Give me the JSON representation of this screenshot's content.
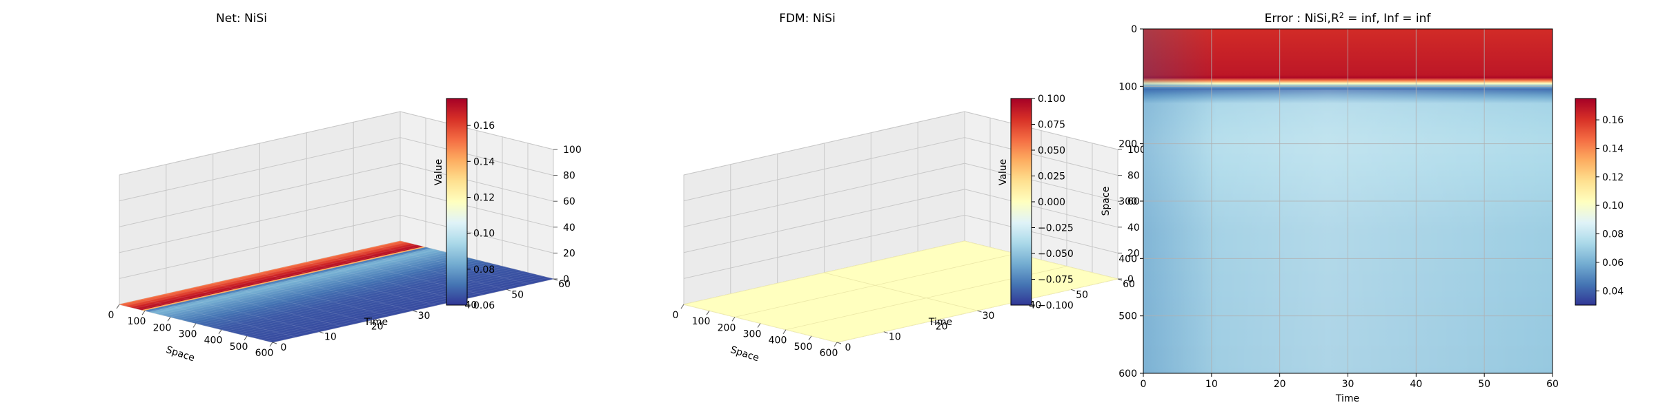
{
  "chart_data": [
    {
      "type": "surface3d",
      "title": "Net: NiSi",
      "xlabel": "Space",
      "ylabel": "Time",
      "zlabel": "Value",
      "x_ticks": [
        0,
        100,
        200,
        300,
        400,
        500,
        600
      ],
      "y_ticks": [
        0,
        10,
        20,
        30,
        40,
        50,
        60
      ],
      "z_ticks": [
        0,
        20,
        40,
        60,
        80,
        100
      ],
      "xlim": [
        0,
        600
      ],
      "ylim": [
        0,
        60
      ],
      "zlim": [
        0,
        100
      ],
      "colorbar": {
        "min": 0.06,
        "max": 0.175,
        "ticks": [
          "0.06",
          "0.08",
          "0.10",
          "0.12",
          "0.14",
          "0.16"
        ],
        "tick_values": [
          0.06,
          0.08,
          0.1,
          0.12,
          0.14,
          0.16
        ]
      },
      "profile": [
        [
          0,
          0.15
        ],
        [
          60,
          0.168
        ],
        [
          90,
          0.172
        ],
        [
          95,
          0.14
        ],
        [
          100,
          0.1
        ],
        [
          105,
          0.072
        ],
        [
          130,
          0.085
        ],
        [
          200,
          0.078
        ],
        [
          300,
          0.07
        ],
        [
          400,
          0.066
        ],
        [
          600,
          0.064
        ]
      ],
      "grid": true
    },
    {
      "type": "surface3d",
      "title": "FDM: NiSi",
      "xlabel": "Space",
      "ylabel": "Time",
      "zlabel": "Value",
      "x_ticks": [
        0,
        100,
        200,
        300,
        400,
        500,
        600
      ],
      "y_ticks": [
        0,
        10,
        20,
        30,
        40,
        50,
        60
      ],
      "z_ticks": [
        0,
        20,
        40,
        60,
        80,
        100
      ],
      "xlim": [
        0,
        600
      ],
      "ylim": [
        0,
        60
      ],
      "zlim": [
        0,
        100
      ],
      "colorbar": {
        "min": -0.1,
        "max": 0.1,
        "ticks": [
          "0.100",
          "0.075",
          "0.050",
          "0.025",
          "0.000",
          "−0.025",
          "−0.050",
          "−0.075",
          "−0.100"
        ],
        "tick_values": [
          0.1,
          0.075,
          0.05,
          0.025,
          0.0,
          -0.025,
          -0.05,
          -0.075,
          -0.1
        ]
      },
      "constant_value": 0.0,
      "grid": true
    },
    {
      "type": "heatmap",
      "title_prefix": "Error : NiSi,",
      "title_sup_base": "R",
      "title_sup": "2",
      "title_suffix": " = inf, Inf = inf",
      "xlabel": "Time",
      "ylabel": "Space",
      "x_ticks": [
        0,
        10,
        20,
        30,
        40,
        50,
        60
      ],
      "y_ticks": [
        0,
        100,
        200,
        300,
        400,
        500,
        600
      ],
      "xlim": [
        0,
        60
      ],
      "ylim": [
        600,
        0
      ],
      "colorbar": {
        "min": 0.03,
        "max": 0.175,
        "ticks": [
          "0.16",
          "0.14",
          "0.12",
          "0.10",
          "0.08",
          "0.06",
          "0.04"
        ],
        "tick_values": [
          0.16,
          0.14,
          0.12,
          0.1,
          0.08,
          0.06,
          0.04
        ]
      },
      "profile_space": [
        [
          0,
          0.162
        ],
        [
          80,
          0.168
        ],
        [
          88,
          0.175
        ],
        [
          92,
          0.11
        ],
        [
          96,
          0.1
        ],
        [
          102,
          0.04
        ],
        [
          115,
          0.055
        ],
        [
          130,
          0.072
        ],
        [
          200,
          0.075
        ],
        [
          350,
          0.07
        ],
        [
          600,
          0.068
        ]
      ],
      "grid": true
    }
  ]
}
